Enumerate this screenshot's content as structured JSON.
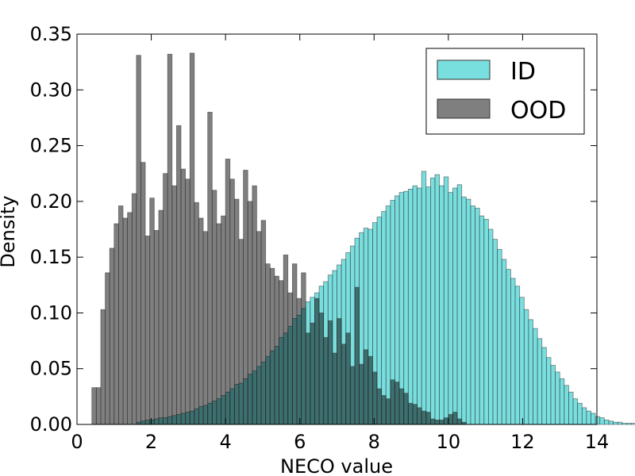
{
  "chart_data": {
    "type": "bar",
    "subtype": "overlapping-histogram",
    "title": "",
    "xlabel": "NECO value",
    "ylabel": "Density",
    "xlim": [
      0,
      14
    ],
    "ylim": [
      0,
      0.35
    ],
    "xticks": [
      "0",
      "2",
      "4",
      "6",
      "8",
      "10",
      "12",
      "14"
    ],
    "yticks": [
      "0.00",
      "0.05",
      "0.10",
      "0.15",
      "0.20",
      "0.25",
      "0.30",
      "0.35"
    ],
    "grid": false,
    "legend_position": "top-right",
    "bin_width": 0.12,
    "series": [
      {
        "name": "ID",
        "color": "#40d0d0",
        "bins_start": 1.6,
        "values": [
          0.002,
          0.003,
          0.004,
          0.004,
          0.005,
          0.006,
          0.006,
          0.007,
          0.008,
          0.009,
          0.01,
          0.011,
          0.012,
          0.014,
          0.016,
          0.017,
          0.019,
          0.021,
          0.023,
          0.026,
          0.029,
          0.032,
          0.036,
          0.037,
          0.041,
          0.045,
          0.048,
          0.052,
          0.056,
          0.061,
          0.066,
          0.07,
          0.078,
          0.082,
          0.088,
          0.095,
          0.098,
          0.104,
          0.11,
          0.114,
          0.118,
          0.124,
          0.128,
          0.134,
          0.138,
          0.143,
          0.148,
          0.154,
          0.16,
          0.167,
          0.172,
          0.176,
          0.175,
          0.181,
          0.186,
          0.191,
          0.196,
          0.201,
          0.205,
          0.208,
          0.209,
          0.211,
          0.214,
          0.212,
          0.227,
          0.213,
          0.221,
          0.224,
          0.214,
          0.222,
          0.208,
          0.212,
          0.215,
          0.204,
          0.202,
          0.196,
          0.194,
          0.187,
          0.184,
          0.175,
          0.166,
          0.157,
          0.148,
          0.139,
          0.131,
          0.124,
          0.114,
          0.103,
          0.094,
          0.086,
          0.077,
          0.069,
          0.06,
          0.053,
          0.047,
          0.041,
          0.035,
          0.029,
          0.023,
          0.019,
          0.015,
          0.012,
          0.01,
          0.007,
          0.006,
          0.004,
          0.003,
          0.002,
          0.002,
          0.001,
          0.001,
          0.001,
          0.001,
          0.001
        ]
      },
      {
        "name": "OOD",
        "color": "#000000",
        "bins_start": 0.4,
        "values": [
          0.033,
          0.033,
          0.103,
          0.136,
          0.158,
          0.18,
          0.196,
          0.185,
          0.19,
          0.207,
          0.331,
          0.235,
          0.169,
          0.203,
          0.174,
          0.192,
          0.225,
          0.332,
          0.214,
          0.268,
          0.229,
          0.22,
          0.333,
          0.199,
          0.185,
          0.173,
          0.28,
          0.21,
          0.18,
          0.187,
          0.238,
          0.22,
          0.202,
          0.166,
          0.228,
          0.2,
          0.214,
          0.173,
          0.183,
          0.144,
          0.14,
          0.133,
          0.129,
          0.152,
          0.118,
          0.144,
          0.113,
          0.136,
          0.082,
          0.091,
          0.113,
          0.1,
          0.078,
          0.093,
          0.064,
          0.095,
          0.072,
          0.082,
          0.052,
          0.123,
          0.054,
          0.067,
          0.061,
          0.047,
          0.032,
          0.026,
          0.023,
          0.04,
          0.038,
          0.032,
          0.028,
          0.019,
          0.018,
          0.015,
          0.012,
          0.011,
          0.005,
          0.004,
          0.004,
          0.006,
          0.009,
          0.011,
          0.005,
          0.002
        ]
      }
    ]
  }
}
